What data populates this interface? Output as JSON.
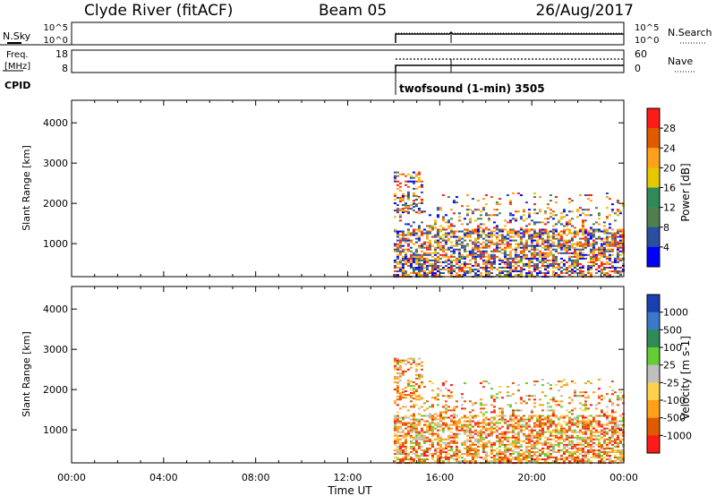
{
  "header": {
    "station": "Clyde River (fitACF)",
    "beam": "Beam 05",
    "date": "26/Aug/2017"
  },
  "panels": {
    "nsky_label": "N.Sky",
    "nsky_ticks": [
      "10^5",
      "10^0"
    ],
    "nsearch_label": "N.Search",
    "nsearch_ticks": [
      "10^5",
      "10^0"
    ],
    "freq_label_1": "Freq.",
    "freq_label_2": "[MHz]",
    "freq_ticks": [
      "18",
      "8"
    ],
    "nave_label": "Nave",
    "nave_ticks": [
      "60",
      "0"
    ],
    "cpid_label": "CPID",
    "cpid_value": "twofsound (1-min) 3505"
  },
  "chart_data": [
    {
      "type": "heatmap",
      "title": "",
      "ylabel": "Slant Range [km]",
      "xlabel": "",
      "y_ticks": [
        "4000",
        "3000",
        "2000",
        "1000"
      ],
      "ylim": [
        180,
        4560
      ],
      "xlim_hours": [
        0,
        24
      ],
      "colorbar_label": "Power [dB]",
      "colorbar_ticks": [
        "28",
        "24",
        "20",
        "16",
        "12",
        "8",
        "4"
      ],
      "colorbar_colors": [
        "#ff1a1a",
        "#e05a00",
        "#ff9f1a",
        "#e6c800",
        "#2e8b57",
        "#4f7f4f",
        "#284fa0",
        "#0000ff"
      ],
      "data_start_time": "14:00",
      "data_end_time": "00:00",
      "ranges_km": [
        200,
        2800
      ]
    },
    {
      "type": "heatmap",
      "title": "",
      "ylabel": "Slant Range [km]",
      "xlabel": "Time UT",
      "y_ticks": [
        "4000",
        "3000",
        "2000",
        "1000"
      ],
      "ylim": [
        180,
        4560
      ],
      "xlim_hours": [
        0,
        24
      ],
      "x_ticks": [
        "00:00",
        "04:00",
        "08:00",
        "12:00",
        "16:00",
        "20:00",
        "00:00"
      ],
      "colorbar_label": "Velocity [m s-1]",
      "colorbar_ticks": [
        "1000",
        "500",
        "100",
        "25",
        "-25",
        "-100",
        "-500",
        "-1000"
      ],
      "colorbar_colors": [
        "#1a3fb0",
        "#3a78c8",
        "#2e8b57",
        "#66cc33",
        "#bfbfbf",
        "#ffd24d",
        "#ff9f1a",
        "#e05a00",
        "#ff1a1a"
      ],
      "data_start_time": "14:00",
      "data_end_time": "00:00",
      "ranges_km": [
        200,
        2800
      ]
    }
  ]
}
